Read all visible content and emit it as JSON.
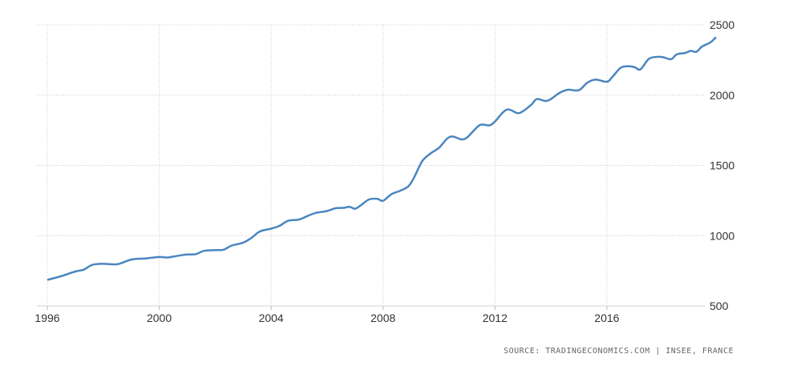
{
  "chart_data": {
    "type": "line",
    "title": "",
    "xlabel": "",
    "ylabel": "",
    "xlim": [
      1996,
      2019.5
    ],
    "ylim": [
      500,
      2500
    ],
    "x_ticks": [
      "1996",
      "2000",
      "2004",
      "2008",
      "2012",
      "2016"
    ],
    "y_ticks": [
      "500",
      "1000",
      "1500",
      "2000",
      "2500"
    ],
    "grid": true,
    "y_axis_side": "right",
    "series": [
      {
        "color": "#4a86c0",
        "points": [
          [
            1996.0,
            685
          ],
          [
            1996.5,
            712
          ],
          [
            1997.0,
            745
          ],
          [
            1997.3,
            758
          ],
          [
            1997.6,
            792
          ],
          [
            1998.0,
            800
          ],
          [
            1998.5,
            797
          ],
          [
            1999.0,
            830
          ],
          [
            1999.5,
            838
          ],
          [
            2000.0,
            848
          ],
          [
            2000.3,
            845
          ],
          [
            2000.7,
            858
          ],
          [
            2001.0,
            866
          ],
          [
            2001.3,
            868
          ],
          [
            2001.6,
            892
          ],
          [
            2002.0,
            897
          ],
          [
            2002.3,
            900
          ],
          [
            2002.6,
            930
          ],
          [
            2003.0,
            950
          ],
          [
            2003.3,
            985
          ],
          [
            2003.6,
            1030
          ],
          [
            2004.0,
            1050
          ],
          [
            2004.3,
            1070
          ],
          [
            2004.6,
            1105
          ],
          [
            2005.0,
            1115
          ],
          [
            2005.3,
            1140
          ],
          [
            2005.6,
            1162
          ],
          [
            2006.0,
            1175
          ],
          [
            2006.3,
            1195
          ],
          [
            2006.6,
            1198
          ],
          [
            2006.8,
            1205
          ],
          [
            2007.0,
            1192
          ],
          [
            2007.2,
            1215
          ],
          [
            2007.5,
            1258
          ],
          [
            2007.8,
            1262
          ],
          [
            2008.0,
            1248
          ],
          [
            2008.3,
            1295
          ],
          [
            2008.6,
            1318
          ],
          [
            2008.9,
            1350
          ],
          [
            2009.1,
            1410
          ],
          [
            2009.4,
            1530
          ],
          [
            2009.7,
            1585
          ],
          [
            2010.0,
            1625
          ],
          [
            2010.3,
            1692
          ],
          [
            2010.5,
            1705
          ],
          [
            2010.8,
            1685
          ],
          [
            2011.0,
            1698
          ],
          [
            2011.3,
            1760
          ],
          [
            2011.5,
            1790
          ],
          [
            2011.8,
            1785
          ],
          [
            2012.0,
            1812
          ],
          [
            2012.3,
            1880
          ],
          [
            2012.5,
            1898
          ],
          [
            2012.8,
            1872
          ],
          [
            2013.0,
            1885
          ],
          [
            2013.3,
            1932
          ],
          [
            2013.5,
            1972
          ],
          [
            2013.8,
            1958
          ],
          [
            2014.0,
            1972
          ],
          [
            2014.3,
            2015
          ],
          [
            2014.6,
            2038
          ],
          [
            2015.0,
            2035
          ],
          [
            2015.3,
            2088
          ],
          [
            2015.6,
            2110
          ],
          [
            2016.0,
            2095
          ],
          [
            2016.2,
            2130
          ],
          [
            2016.5,
            2195
          ],
          [
            2016.8,
            2205
          ],
          [
            2017.0,
            2198
          ],
          [
            2017.2,
            2183
          ],
          [
            2017.5,
            2258
          ],
          [
            2017.8,
            2272
          ],
          [
            2018.0,
            2270
          ],
          [
            2018.3,
            2256
          ],
          [
            2018.5,
            2290
          ],
          [
            2018.8,
            2300
          ],
          [
            2019.0,
            2315
          ],
          [
            2019.2,
            2308
          ],
          [
            2019.4,
            2345
          ],
          [
            2019.7,
            2375
          ],
          [
            2019.9,
            2412
          ]
        ]
      }
    ]
  },
  "source_text": "SOURCE: TRADINGECONOMICS.COM | INSEE, FRANCE"
}
